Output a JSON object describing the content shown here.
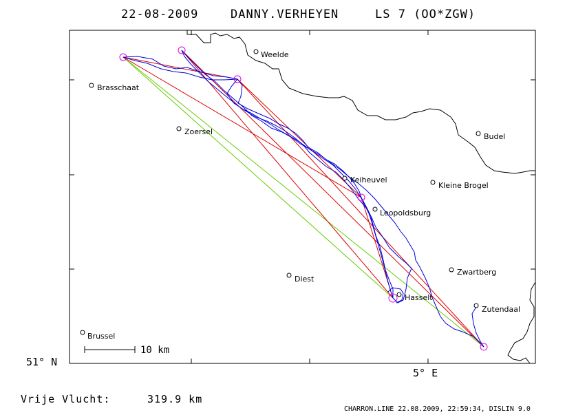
{
  "header": {
    "date": "22-08-2009",
    "pilot": "DANNY.VERHEYEN",
    "glider": "LS 7 (OO*ZGW)"
  },
  "map": {
    "cities": [
      {
        "id": "weelde",
        "name": "Weelde"
      },
      {
        "id": "brasschaat",
        "name": "Brasschaat"
      },
      {
        "id": "zoersel",
        "name": "Zoersel"
      },
      {
        "id": "budel",
        "name": "Budel"
      },
      {
        "id": "keiheuvel",
        "name": "Keiheuvel"
      },
      {
        "id": "kleine-brogel",
        "name": "Kleine Brogel"
      },
      {
        "id": "leopoldsburg",
        "name": "Leopoldsburg"
      },
      {
        "id": "zwartberg",
        "name": "Zwartberg"
      },
      {
        "id": "diest",
        "name": "Diest"
      },
      {
        "id": "hasselt",
        "name": "Hasselt"
      },
      {
        "id": "zutendaal",
        "name": "Zutendaal"
      },
      {
        "id": "brussel",
        "name": "Brussel"
      }
    ],
    "scale_label": "10 km",
    "lat_label": "51° N",
    "lon_label": "5° E",
    "colors": {
      "track": "#0000dd",
      "task_leg": "#dd0000",
      "declared_leg": "#66cc00",
      "turnpoint": "#dd00dd",
      "border": "#000000"
    }
  },
  "footer": {
    "distance_label": "Vrije Vlucht:",
    "distance_value": "319.9 km",
    "credit": "CHARRON.LINE 22.08.2009, 22:59:34, DISLIN 9.0"
  }
}
